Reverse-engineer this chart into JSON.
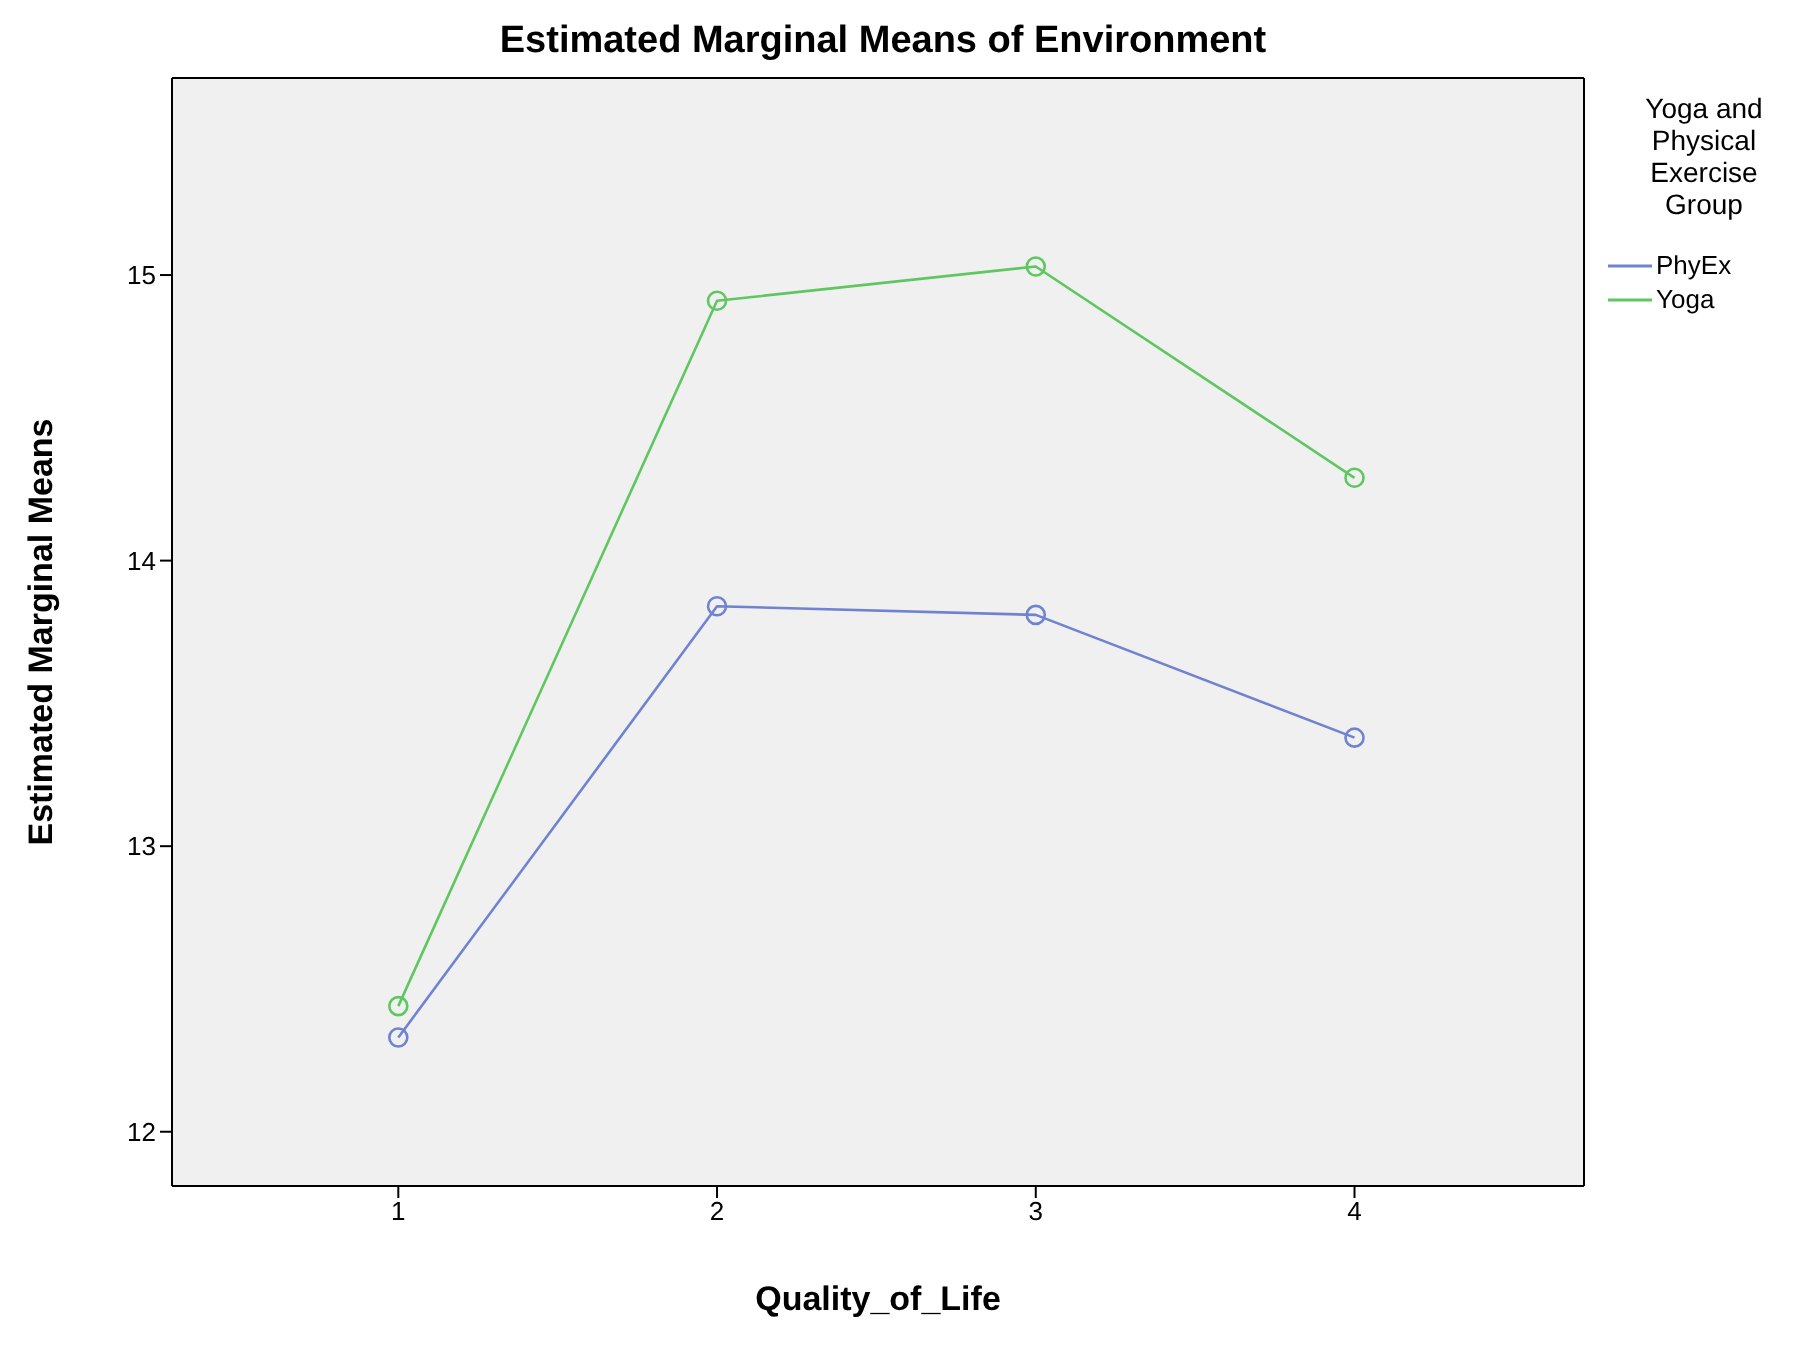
{
  "chart_data": {
    "type": "line",
    "title": "Estimated Marginal Means of Environment",
    "xlabel": "Quality_of_Life",
    "ylabel": "Estimated Marginal Means",
    "legend_title": "Yoga and Physical Exercise Group",
    "x": [
      1,
      2,
      3,
      4
    ],
    "series": [
      {
        "name": "PhyEx",
        "color": "#7083d0",
        "values": [
          12.33,
          13.84,
          13.81,
          13.38
        ]
      },
      {
        "name": "Yoga",
        "color": "#5fc75f",
        "values": [
          12.44,
          14.91,
          15.03,
          14.29
        ]
      }
    ],
    "xlim": [
      0.29,
      4.72
    ],
    "xticks": [
      1,
      2,
      3,
      4
    ],
    "ylim": [
      11.81,
      15.69
    ],
    "yticks": [
      12,
      13,
      14,
      15
    ],
    "grid": false,
    "legend": "right",
    "marker": "circle",
    "line_style": "solid"
  }
}
